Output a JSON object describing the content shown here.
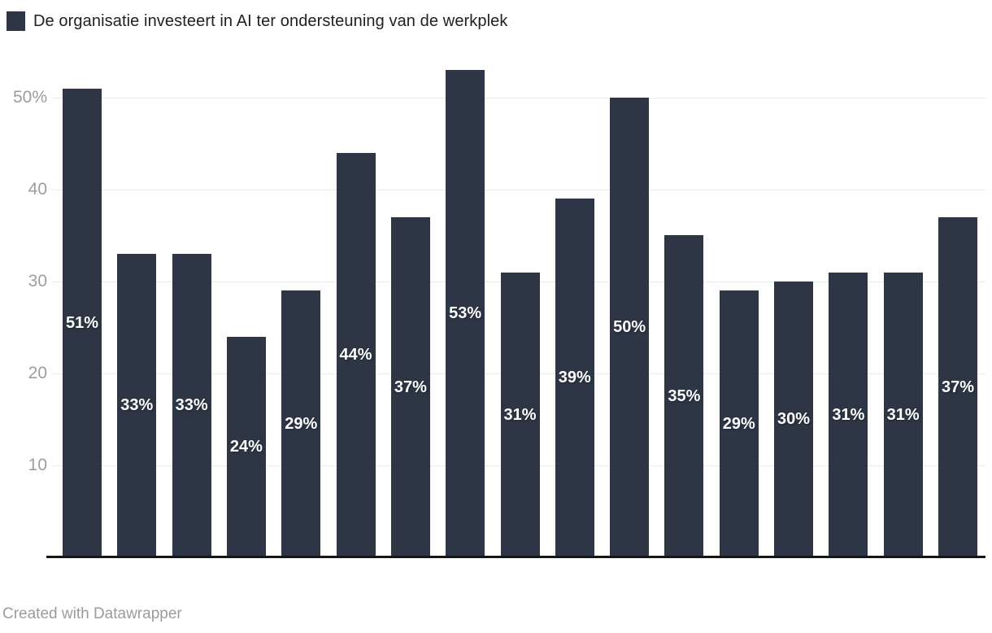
{
  "legend": {
    "swatch_color": "#2e3645",
    "label": "De organisatie investeert in AI ter ondersteuning van de werkplek"
  },
  "footer": {
    "credit": "Created with Datawrapper"
  },
  "chart_data": {
    "type": "bar",
    "title": "De organisatie investeert in AI ter ondersteuning van de werkplek",
    "values": [
      51,
      33,
      33,
      24,
      29,
      44,
      37,
      53,
      31,
      39,
      50,
      35,
      29,
      30,
      31,
      31,
      37
    ],
    "bar_labels": [
      "51%",
      "33%",
      "33%",
      "24%",
      "29%",
      "44%",
      "37%",
      "53%",
      "31%",
      "39%",
      "50%",
      "35%",
      "29%",
      "30%",
      "31%",
      "31%",
      "37%"
    ],
    "bar_color": "#2e3645",
    "value_label_color": "#ffffff",
    "yticks": [
      {
        "value": 10,
        "label": "10"
      },
      {
        "value": 20,
        "label": "20"
      },
      {
        "value": 30,
        "label": "30"
      },
      {
        "value": 40,
        "label": "40"
      },
      {
        "value": 50,
        "label": "50%"
      }
    ],
    "ylim": [
      0,
      53.5
    ],
    "grid": true,
    "legend_position": "top-left",
    "xlabel": "",
    "ylabel": ""
  }
}
